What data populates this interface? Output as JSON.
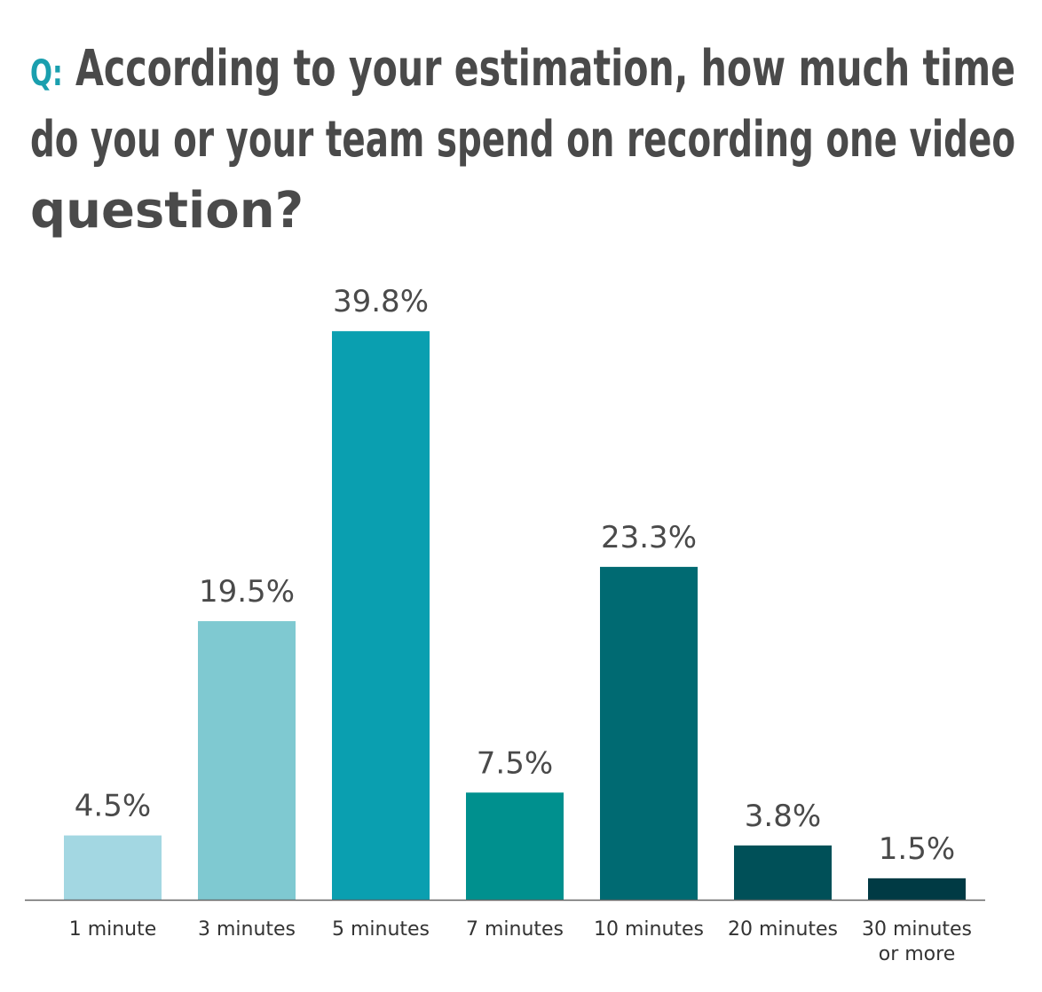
{
  "chart_data": {
    "type": "bar",
    "title_prefix": "Q:",
    "title_lines": [
      "According to your estimation, how much time",
      "do you or your team spend on recording one video",
      "question?"
    ],
    "xlabel": "",
    "ylabel": "",
    "ylim": [
      0,
      45
    ],
    "grid": false,
    "legend": "none",
    "categories": [
      [
        "1 minute"
      ],
      [
        "3 minutes"
      ],
      [
        "5 minutes"
      ],
      [
        "7 minutes"
      ],
      [
        "10 minutes"
      ],
      [
        "20 minutes"
      ],
      [
        "30 minutes",
        "or more"
      ]
    ],
    "values": [
      4.5,
      19.5,
      39.8,
      7.5,
      23.3,
      3.8,
      1.5
    ],
    "value_labels": [
      "4.5%",
      "19.5%",
      "39.8%",
      "7.5%",
      "23.3%",
      "3.8%",
      "1.5%"
    ],
    "colors": [
      "#a3d7e2",
      "#7fc9d1",
      "#0a9fb0",
      "#00908e",
      "#006a72",
      "#005058",
      "#003a44"
    ],
    "axis_color": "#666666"
  }
}
